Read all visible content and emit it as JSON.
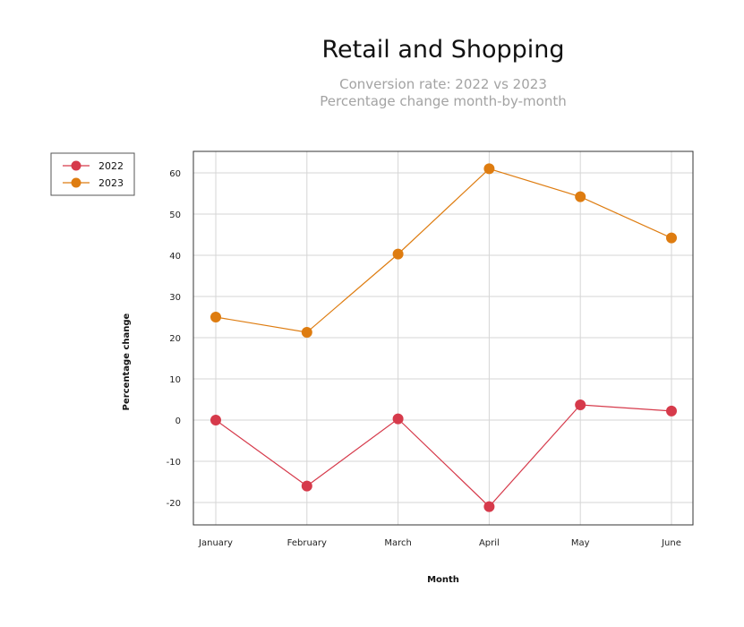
{
  "chart_data": {
    "type": "line",
    "title": "Retail and Shopping",
    "subtitle": [
      "Conversion rate: 2022 vs 2023",
      "Percentage change month-by-month"
    ],
    "xlabel": "Month",
    "ylabel": "Percentage change",
    "categories": [
      "January",
      "February",
      "March",
      "April",
      "May",
      "June"
    ],
    "ylim": [
      -25,
      65
    ],
    "yticks": [
      -20,
      -10,
      0,
      10,
      20,
      30,
      40,
      50,
      60
    ],
    "grid": true,
    "legend_position": "top-left",
    "series": [
      {
        "name": "2022",
        "color": "#d63a4b",
        "values": [
          0,
          -16,
          0.3,
          -21,
          3.7,
          2.2
        ]
      },
      {
        "name": "2023",
        "color": "#de7c10",
        "values": [
          25,
          21.3,
          40.3,
          61,
          54.2,
          44.2
        ]
      }
    ]
  }
}
